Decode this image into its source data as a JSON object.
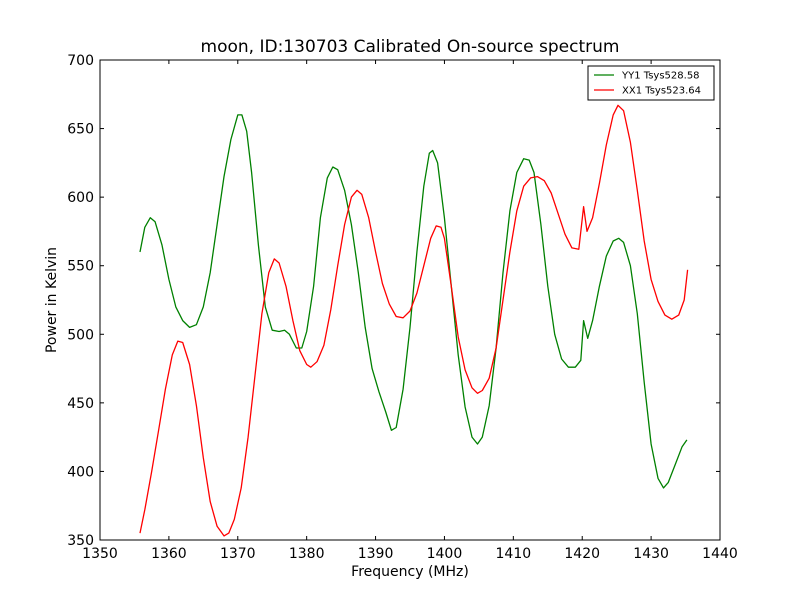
{
  "chart_data": {
    "type": "line",
    "title": "moon, ID:130703 Calibrated On-source spectrum",
    "xlabel": "Frequency (MHz)",
    "ylabel": "Power in Kelvin",
    "xlim": [
      1350,
      1440
    ],
    "ylim": [
      350,
      700
    ],
    "xticks": [
      1350,
      1360,
      1370,
      1380,
      1390,
      1400,
      1410,
      1420,
      1430,
      1440
    ],
    "yticks": [
      350,
      400,
      450,
      500,
      550,
      600,
      650,
      700
    ],
    "grid": false,
    "legend_position": "top-right",
    "series": [
      {
        "name": "YY1 Tsys528.58",
        "color": "#008000",
        "points": [
          [
            1355.8,
            560
          ],
          [
            1356.5,
            578
          ],
          [
            1357.3,
            585
          ],
          [
            1358,
            582
          ],
          [
            1359,
            565
          ],
          [
            1360,
            540
          ],
          [
            1361,
            520
          ],
          [
            1362,
            510
          ],
          [
            1363,
            505
          ],
          [
            1364,
            507
          ],
          [
            1365,
            520
          ],
          [
            1366,
            545
          ],
          [
            1367,
            580
          ],
          [
            1368,
            615
          ],
          [
            1369,
            642
          ],
          [
            1370,
            660
          ],
          [
            1370.6,
            660
          ],
          [
            1371.3,
            648
          ],
          [
            1372,
            618
          ],
          [
            1373,
            565
          ],
          [
            1374,
            520
          ],
          [
            1375,
            503
          ],
          [
            1376,
            502
          ],
          [
            1376.8,
            503
          ],
          [
            1377.5,
            500
          ],
          [
            1378.5,
            490
          ],
          [
            1379.3,
            490
          ],
          [
            1380,
            502
          ],
          [
            1381,
            535
          ],
          [
            1382,
            585
          ],
          [
            1383,
            614
          ],
          [
            1383.8,
            622
          ],
          [
            1384.5,
            620
          ],
          [
            1385.5,
            605
          ],
          [
            1386.5,
            580
          ],
          [
            1387.5,
            545
          ],
          [
            1388.5,
            505
          ],
          [
            1389.5,
            475
          ],
          [
            1390.5,
            458
          ],
          [
            1391.5,
            443
          ],
          [
            1392.3,
            430
          ],
          [
            1393,
            432
          ],
          [
            1394,
            460
          ],
          [
            1395,
            505
          ],
          [
            1396,
            560
          ],
          [
            1397,
            608
          ],
          [
            1397.8,
            632
          ],
          [
            1398.3,
            634
          ],
          [
            1399,
            625
          ],
          [
            1400,
            585
          ],
          [
            1401,
            535
          ],
          [
            1402,
            485
          ],
          [
            1403,
            447
          ],
          [
            1404,
            425
          ],
          [
            1404.8,
            420
          ],
          [
            1405.5,
            425
          ],
          [
            1406.5,
            448
          ],
          [
            1407.5,
            490
          ],
          [
            1408.5,
            545
          ],
          [
            1409.5,
            590
          ],
          [
            1410.5,
            618
          ],
          [
            1411.5,
            628
          ],
          [
            1412.3,
            627
          ],
          [
            1413,
            618
          ],
          [
            1414,
            580
          ],
          [
            1415,
            535
          ],
          [
            1416,
            500
          ],
          [
            1417,
            482
          ],
          [
            1418,
            476
          ],
          [
            1419,
            476
          ],
          [
            1419.8,
            481
          ],
          [
            1420.2,
            510
          ],
          [
            1420.8,
            497
          ],
          [
            1421.5,
            510
          ],
          [
            1422.5,
            535
          ],
          [
            1423.5,
            557
          ],
          [
            1424.5,
            568
          ],
          [
            1425.3,
            570
          ],
          [
            1426,
            567
          ],
          [
            1427,
            550
          ],
          [
            1428,
            515
          ],
          [
            1429,
            465
          ],
          [
            1430,
            420
          ],
          [
            1431,
            395
          ],
          [
            1431.8,
            388
          ],
          [
            1432.5,
            392
          ],
          [
            1433.5,
            405
          ],
          [
            1434.5,
            418
          ],
          [
            1435.2,
            423
          ]
        ]
      },
      {
        "name": "XX1 Tsys523.64",
        "color": "#ff0000",
        "points": [
          [
            1355.8,
            355
          ],
          [
            1356.5,
            372
          ],
          [
            1357.5,
            400
          ],
          [
            1358.5,
            430
          ],
          [
            1359.5,
            460
          ],
          [
            1360.5,
            485
          ],
          [
            1361.3,
            495
          ],
          [
            1362,
            494
          ],
          [
            1363,
            478
          ],
          [
            1364,
            448
          ],
          [
            1365,
            410
          ],
          [
            1366,
            378
          ],
          [
            1367,
            360
          ],
          [
            1368,
            353
          ],
          [
            1368.7,
            355
          ],
          [
            1369.5,
            365
          ],
          [
            1370.5,
            388
          ],
          [
            1371.5,
            425
          ],
          [
            1372.5,
            470
          ],
          [
            1373.5,
            515
          ],
          [
            1374.5,
            545
          ],
          [
            1375.3,
            555
          ],
          [
            1376,
            552
          ],
          [
            1377,
            535
          ],
          [
            1378,
            510
          ],
          [
            1379,
            488
          ],
          [
            1380,
            478
          ],
          [
            1380.6,
            476
          ],
          [
            1381.5,
            480
          ],
          [
            1382.5,
            492
          ],
          [
            1383.5,
            518
          ],
          [
            1384.5,
            550
          ],
          [
            1385.5,
            580
          ],
          [
            1386.5,
            600
          ],
          [
            1387.3,
            605
          ],
          [
            1388,
            602
          ],
          [
            1389,
            585
          ],
          [
            1390,
            560
          ],
          [
            1391,
            537
          ],
          [
            1392,
            522
          ],
          [
            1393,
            513
          ],
          [
            1394,
            512
          ],
          [
            1395,
            517
          ],
          [
            1396,
            530
          ],
          [
            1397,
            550
          ],
          [
            1398,
            570
          ],
          [
            1398.8,
            579
          ],
          [
            1399.5,
            578
          ],
          [
            1400,
            570
          ],
          [
            1401,
            535
          ],
          [
            1402,
            498
          ],
          [
            1403,
            474
          ],
          [
            1404,
            461
          ],
          [
            1404.8,
            457
          ],
          [
            1405.5,
            459
          ],
          [
            1406.5,
            468
          ],
          [
            1407.5,
            490
          ],
          [
            1408.5,
            525
          ],
          [
            1409.5,
            560
          ],
          [
            1410.5,
            590
          ],
          [
            1411.5,
            608
          ],
          [
            1412.5,
            614
          ],
          [
            1413.5,
            615
          ],
          [
            1414.5,
            612
          ],
          [
            1415.5,
            603
          ],
          [
            1416.5,
            588
          ],
          [
            1417.5,
            573
          ],
          [
            1418.5,
            563
          ],
          [
            1419.5,
            562
          ],
          [
            1420.2,
            593
          ],
          [
            1420.7,
            575
          ],
          [
            1421.5,
            585
          ],
          [
            1422.5,
            610
          ],
          [
            1423.5,
            638
          ],
          [
            1424.5,
            660
          ],
          [
            1425.2,
            667
          ],
          [
            1426,
            663
          ],
          [
            1427,
            640
          ],
          [
            1428,
            605
          ],
          [
            1429,
            568
          ],
          [
            1430,
            540
          ],
          [
            1431,
            524
          ],
          [
            1432,
            514
          ],
          [
            1433,
            511
          ],
          [
            1434,
            514
          ],
          [
            1434.8,
            525
          ],
          [
            1435.3,
            547
          ]
        ]
      }
    ]
  }
}
